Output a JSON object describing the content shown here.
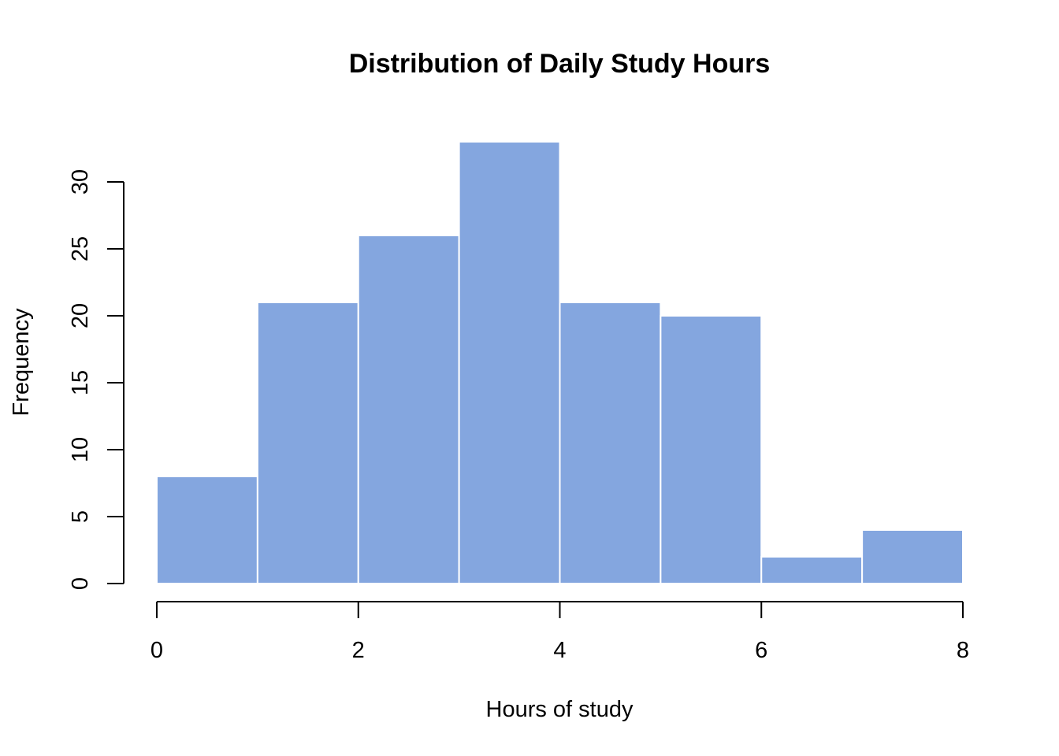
{
  "chart_data": {
    "type": "bar",
    "subtype": "histogram",
    "title": "Distribution of Daily Study Hours",
    "xlabel": "Hours of study",
    "ylabel": "Frequency",
    "bins": [
      {
        "start": 0,
        "end": 1,
        "count": 8
      },
      {
        "start": 1,
        "end": 2,
        "count": 21
      },
      {
        "start": 2,
        "end": 3,
        "count": 26
      },
      {
        "start": 3,
        "end": 4,
        "count": 33
      },
      {
        "start": 4,
        "end": 5,
        "count": 21
      },
      {
        "start": 5,
        "end": 6,
        "count": 20
      },
      {
        "start": 6,
        "end": 7,
        "count": 2
      },
      {
        "start": 7,
        "end": 8,
        "count": 4
      }
    ],
    "xlim": [
      0,
      8
    ],
    "ylim": [
      0,
      33
    ],
    "x_ticks": [
      0,
      2,
      4,
      6,
      8
    ],
    "y_ticks": [
      0,
      5,
      10,
      15,
      20,
      25,
      30
    ],
    "grid": false,
    "legend": "none",
    "colors": {
      "bar_fill": "#84A6DF",
      "bar_border": "#FFFFFF",
      "axis": "#000000"
    }
  }
}
